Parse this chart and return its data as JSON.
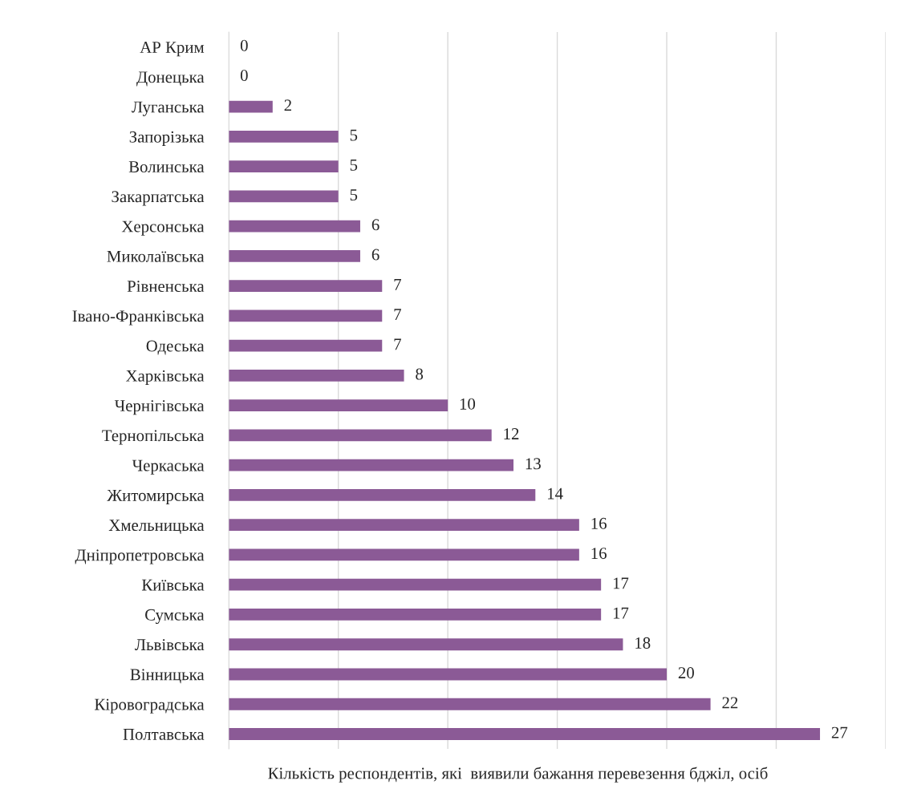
{
  "chart_data": {
    "type": "bar",
    "orientation": "horizontal",
    "xlabel": "Кількість респондентів, які  виявили бажання перевезення бджіл, осіб",
    "categories": [
      "АР Крим",
      "Донецька",
      "Луганська",
      "Запорізька",
      "Волинська",
      "Закарпатська",
      "Херсонська",
      "Миколаївська",
      "Рівненська",
      "Івано-Франківська",
      "Одеська",
      "Харківська",
      "Чернігівська",
      "Тернопільська",
      "Черкаська",
      "Житомирська",
      "Хмельницька",
      "Дніпропетровська",
      "Київська",
      "Сумська",
      "Львівська",
      "Вінницька",
      "Кіровоградська",
      "Полтавська"
    ],
    "values": [
      0,
      0,
      2,
      5,
      5,
      5,
      6,
      6,
      7,
      7,
      7,
      8,
      10,
      12,
      13,
      14,
      16,
      16,
      17,
      17,
      18,
      20,
      22,
      27
    ],
    "color": "#8b5a96",
    "xlim": [
      0,
      30
    ],
    "xticks": [
      {
        "value": 0,
        "label": null
      },
      {
        "value": 5,
        "label": null
      },
      {
        "value": 10,
        "label": null
      },
      {
        "value": 15,
        "label": null
      },
      {
        "value": 20,
        "label": null
      },
      {
        "value": 25,
        "label": null
      },
      {
        "value": 30,
        "label": null
      }
    ],
    "tick_labels": "y",
    "grid": "x",
    "data_labels": true,
    "legend": false
  }
}
